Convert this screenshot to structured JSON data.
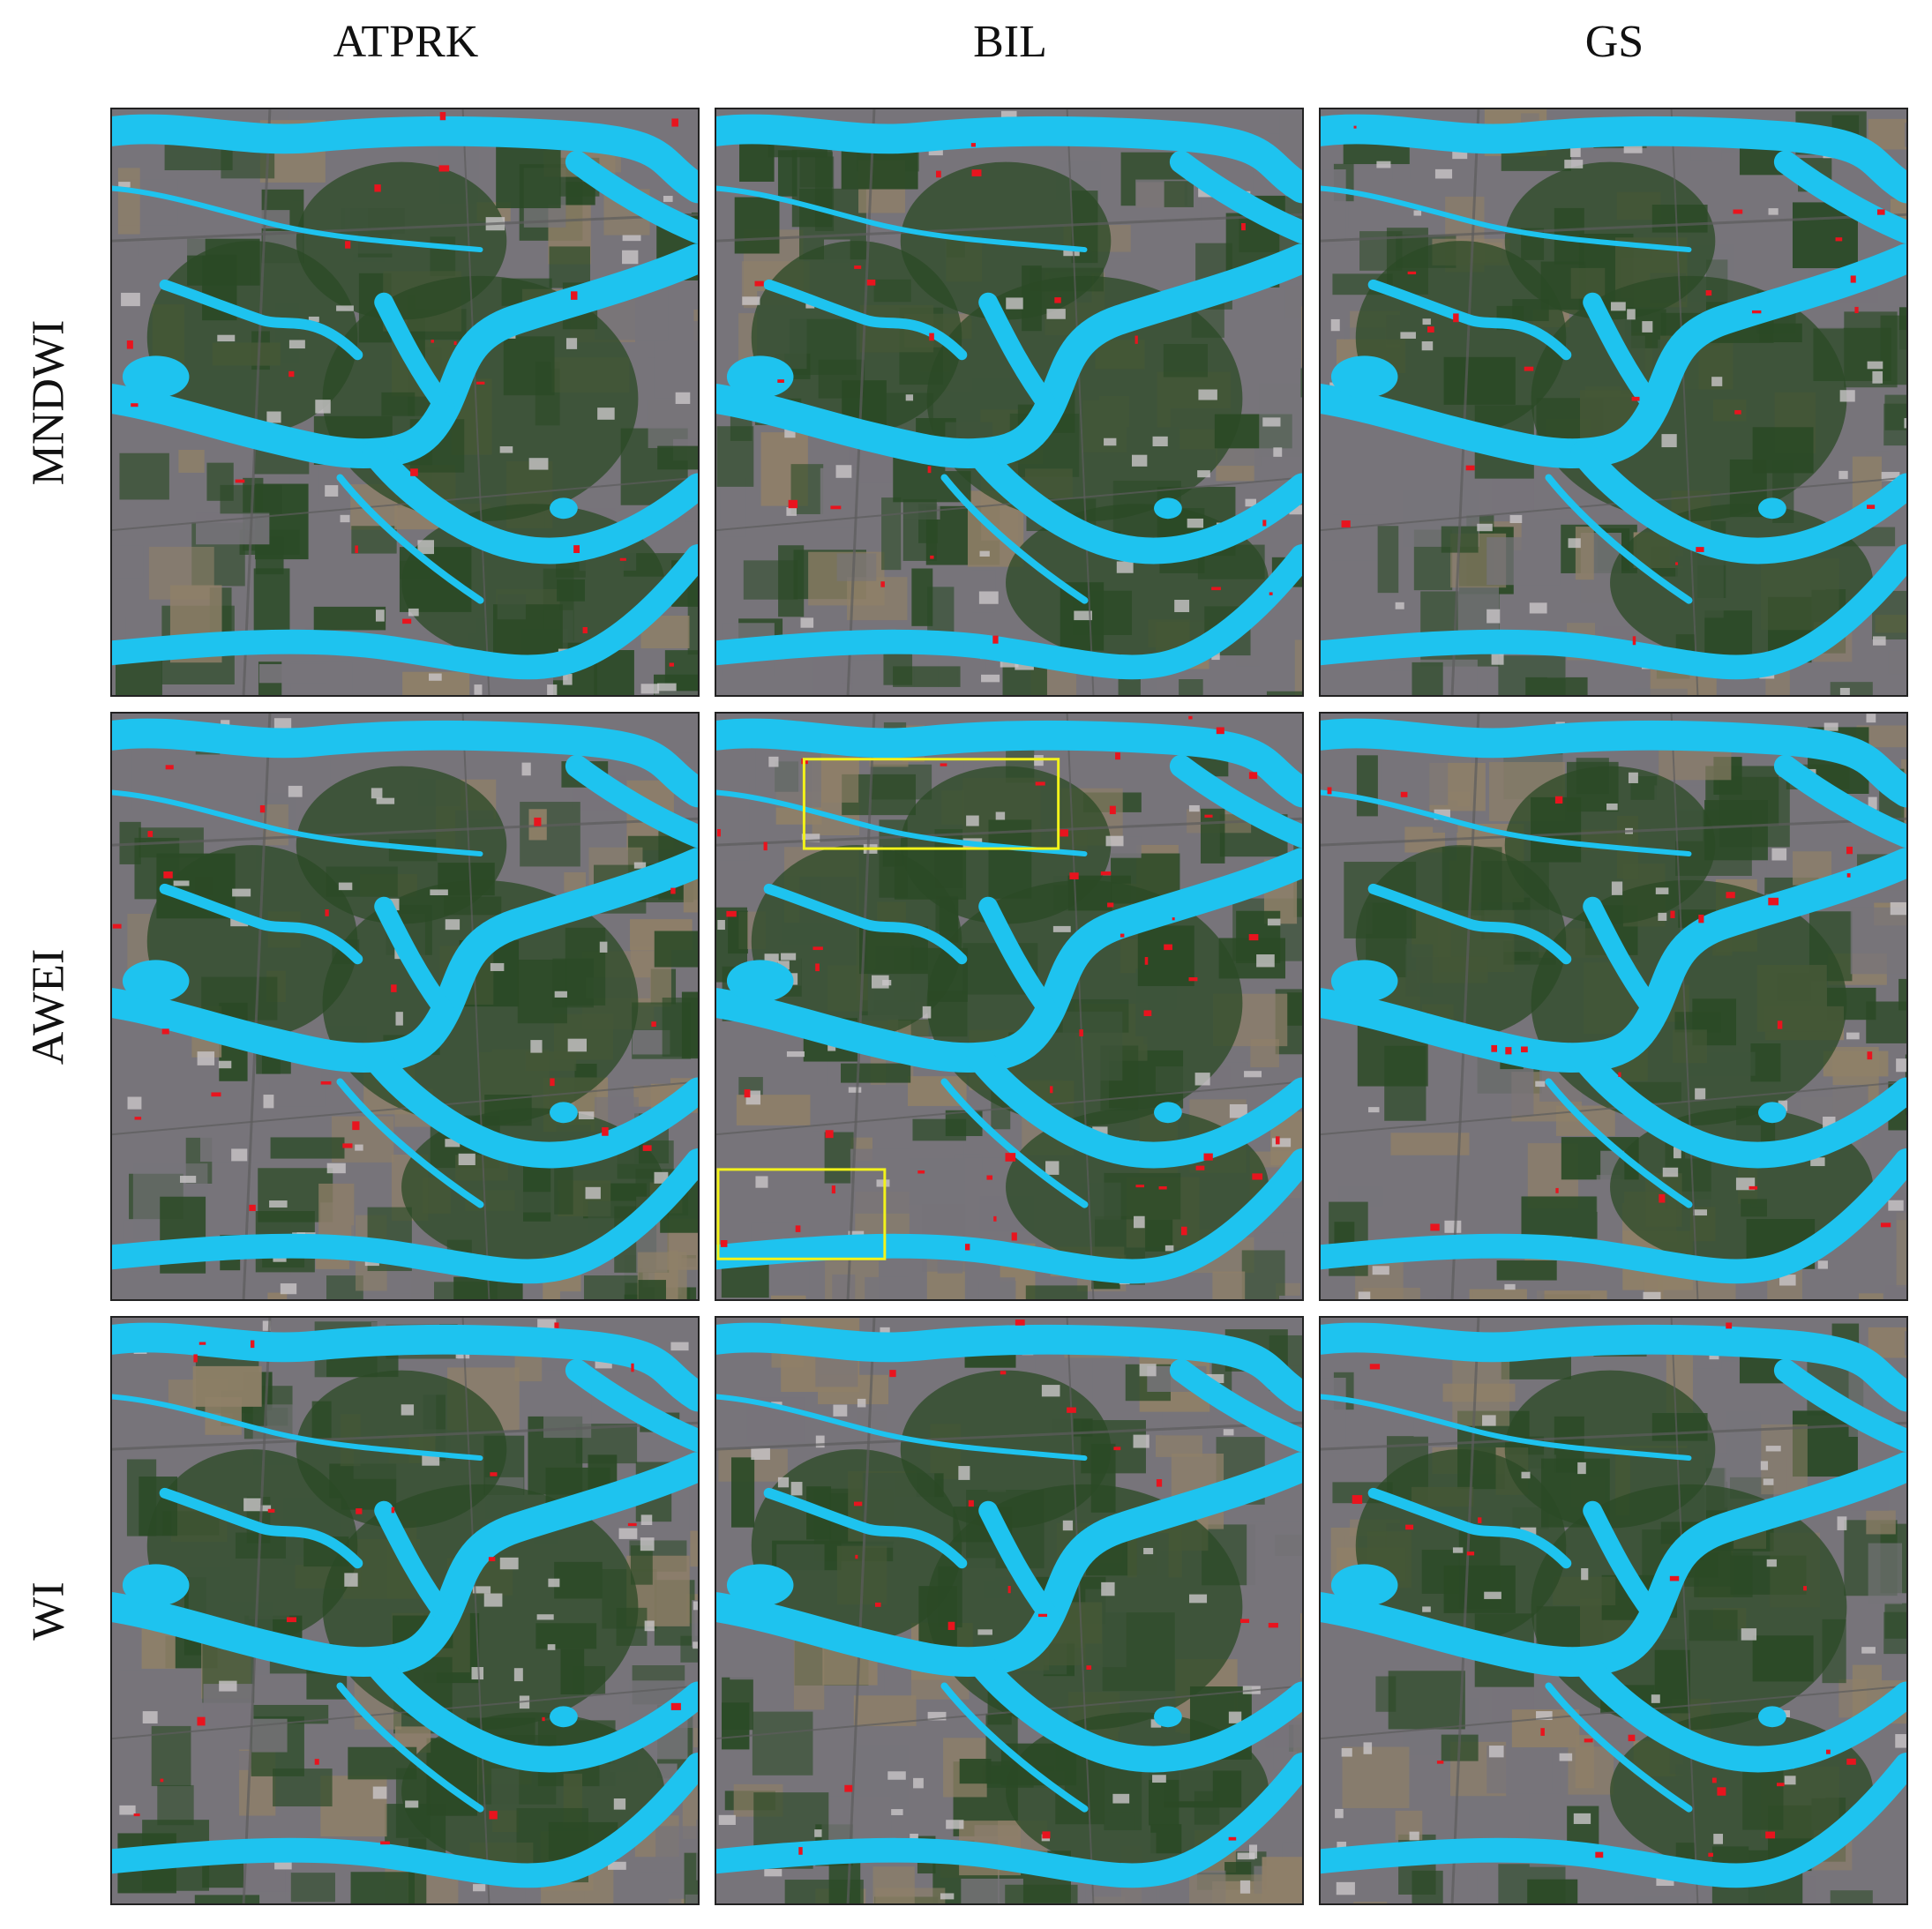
{
  "columns": [
    "ATPRK",
    "BIL",
    "GS"
  ],
  "rows": [
    "MNDWI",
    "AWEI",
    "WI"
  ],
  "colors": {
    "water": "#1ec3ef",
    "misclassified": "#e8141e",
    "highlight_box": "#f2f21a",
    "urban": "#77747a",
    "vegetation": "#2b4a26",
    "bare_soil": "#8f8068",
    "background": "#ffffff"
  },
  "highlight_panel": "AWEI-BIL"
}
